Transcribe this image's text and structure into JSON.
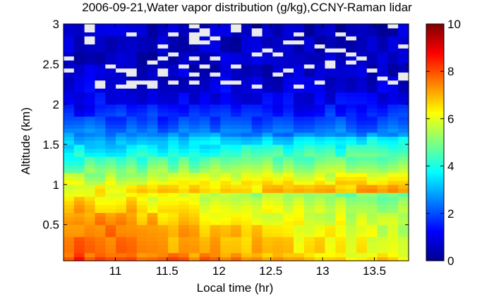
{
  "chart_data": {
    "type": "heatmap",
    "title": "2006-09-21,Water vapor distribution (g/kg),CCNY-Raman lidar",
    "xlabel": "Local time (hr)",
    "ylabel": "Altitude (km)",
    "xlim": [
      10.5,
      13.83
    ],
    "ylim": [
      0.05,
      3.0
    ],
    "xticks": [
      "11",
      "11.5",
      "12",
      "12.5",
      "13",
      "13.5"
    ],
    "yticks": [
      "0.5",
      "1",
      "1.5",
      "2",
      "2.5",
      "3"
    ],
    "colorbar": {
      "ticks": [
        "0",
        "2",
        "4",
        "6",
        "8",
        "10"
      ],
      "range": [
        0,
        10
      ],
      "colormap": "jet"
    },
    "x": [
      10.55,
      10.65,
      10.75,
      10.85,
      10.95,
      11.05,
      11.15,
      11.25,
      11.35,
      11.45,
      11.55,
      11.65,
      11.75,
      11.85,
      11.95,
      12.05,
      12.15,
      12.25,
      12.35,
      12.45,
      12.55,
      12.65,
      12.75,
      12.85,
      12.95,
      13.05,
      13.15,
      13.25,
      13.35,
      13.45,
      13.55,
      13.65,
      13.75
    ],
    "profile_altitude_km": [
      0.05,
      0.25,
      0.5,
      0.75,
      1.0,
      1.25,
      1.5,
      1.75,
      2.0,
      2.25,
      2.5,
      2.75,
      3.0
    ],
    "profile_wv_gkg": [
      8.0,
      7.9,
      7.6,
      7.0,
      6.0,
      4.5,
      3.2,
      2.0,
      1.2,
      0.9,
      0.7,
      0.6,
      0.6
    ],
    "missing_note": "white cells at 2.2–3.0 km indicate no data"
  }
}
